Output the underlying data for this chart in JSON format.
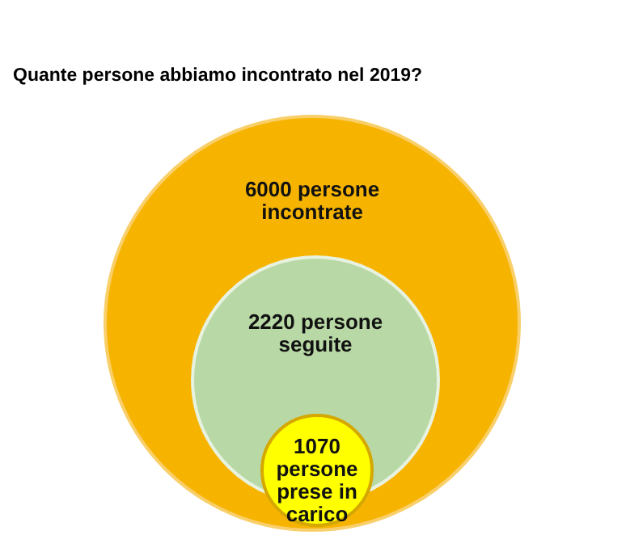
{
  "chart_data": {
    "type": "other",
    "title": "Quante persone abbiamo incontrato nel 2019?",
    "categories": [
      "persone incontrate",
      "persone seguite",
      "persone prese in carico"
    ],
    "values": [
      6000,
      2220,
      1070
    ],
    "colors": [
      "#f6b400",
      "#b8d9a6",
      "#ffff00"
    ],
    "data_labels": true
  }
}
